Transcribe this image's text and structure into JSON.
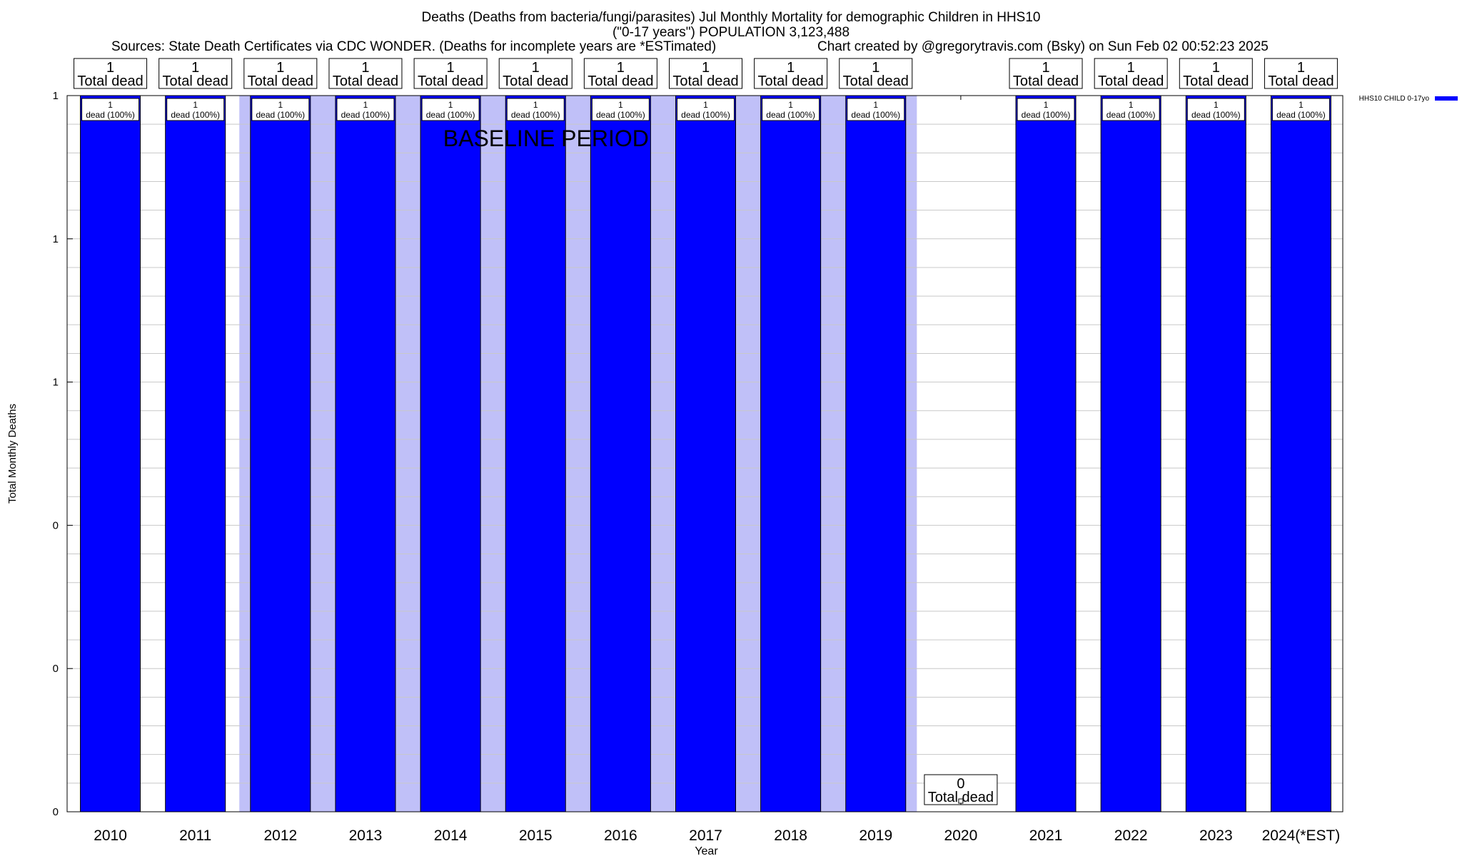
{
  "title": {
    "line1": "Deaths (Deaths from bacteria/fungi/parasites) Jul Monthly Mortality for demographic Children in HHS10",
    "line2": "(\"0-17 years\") POPULATION 3,123,488",
    "sources": "Sources: State Death Certificates via CDC WONDER. (Deaths for incomplete years are *ESTimated)",
    "credit": "Chart created by @gregorytravis.com (Bsky) on Sun Feb 02 00:52:23 2025"
  },
  "chart_data": {
    "type": "bar",
    "title": "Deaths (Deaths from bacteria/fungi/parasites) Jul Monthly Mortality for demographic Children in HHS10",
    "xlabel": "Year",
    "ylabel": "Total Monthly Deaths",
    "categories": [
      "2010",
      "2011",
      "2012",
      "2013",
      "2014",
      "2015",
      "2016",
      "2017",
      "2018",
      "2019",
      "2020",
      "2021",
      "2022",
      "2023",
      "2024(*EST)"
    ],
    "series": [
      {
        "name": "HHS10 CHILD 0-17yo",
        "values": [
          1,
          1,
          1,
          1,
          1,
          1,
          1,
          1,
          1,
          1,
          0,
          1,
          1,
          1,
          1
        ]
      }
    ],
    "ylim": [
      0,
      1
    ],
    "ytick_labels": [
      "0",
      "0",
      "0",
      "1",
      "1",
      "1"
    ],
    "total_label_numbers": [
      "1",
      "1",
      "1",
      "1",
      "1",
      "1",
      "1",
      "1",
      "1",
      "1",
      "0",
      "1",
      "1",
      "1",
      "1"
    ],
    "total_label_text": "Total dead",
    "inner_label_count": "1",
    "inner_label_text": "dead (100%)",
    "baseline_label": "BASELINE PERIOD",
    "baseline_categories": [
      "2012",
      "2019"
    ],
    "grid": true,
    "legend_position": "top-right",
    "colors": {
      "bar": "#0000ff",
      "baseline_shade": "#c0c0f8",
      "grid": "#c8c8c8"
    }
  }
}
